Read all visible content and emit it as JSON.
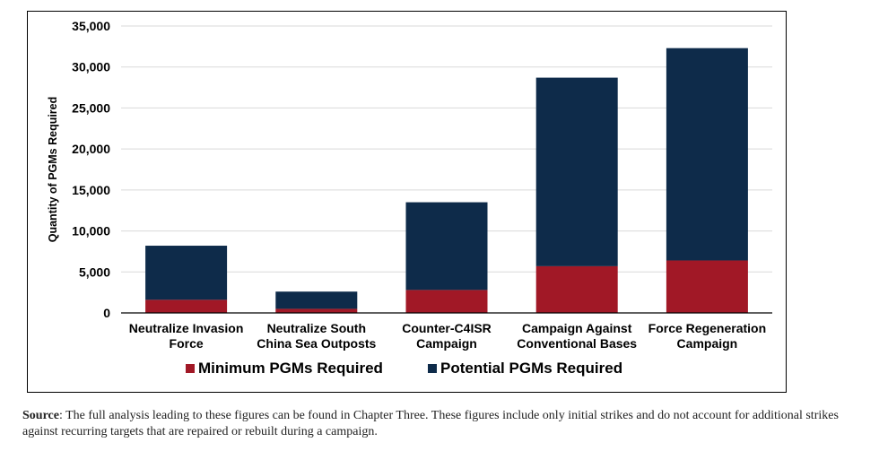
{
  "colors": {
    "minimum": "#a11826",
    "potential": "#0e2b4a",
    "grid": "#d9d9d9",
    "axis": "#000000"
  },
  "chart_data": {
    "type": "bar",
    "stacked": true,
    "categories": [
      [
        "Neutralize Invasion",
        "Force"
      ],
      [
        "Neutralize South",
        "China Sea Outposts"
      ],
      [
        "Counter-C4ISR",
        "Campaign"
      ],
      [
        "Campaign Against",
        "Conventional Bases"
      ],
      [
        "Force Regeneration",
        "Campaign"
      ]
    ],
    "series": [
      {
        "name": "Minimum PGMs Required",
        "values": [
          1600,
          500,
          2800,
          5700,
          6400
        ]
      },
      {
        "name": "Potential PGMs Required",
        "values": [
          6600,
          2100,
          10700,
          23000,
          25900
        ]
      }
    ],
    "ylabel": "Quantity of PGMs Required",
    "xlabel": "",
    "ylim": [
      0,
      35000
    ],
    "yticks": [
      0,
      5000,
      10000,
      15000,
      20000,
      25000,
      30000,
      35000
    ],
    "ytick_labels": [
      "0",
      "5,000",
      "10,000",
      "15,000",
      "20,000",
      "25,000",
      "30,000",
      "35,000"
    ],
    "grid": true,
    "legend_position": "bottom"
  },
  "source": {
    "label": "Source",
    "text": ": The full analysis leading to these figures can be found in Chapter Three. These figures include only initial strikes and do not account for additional strikes against recurring targets that are repaired or rebuilt during a campaign."
  }
}
